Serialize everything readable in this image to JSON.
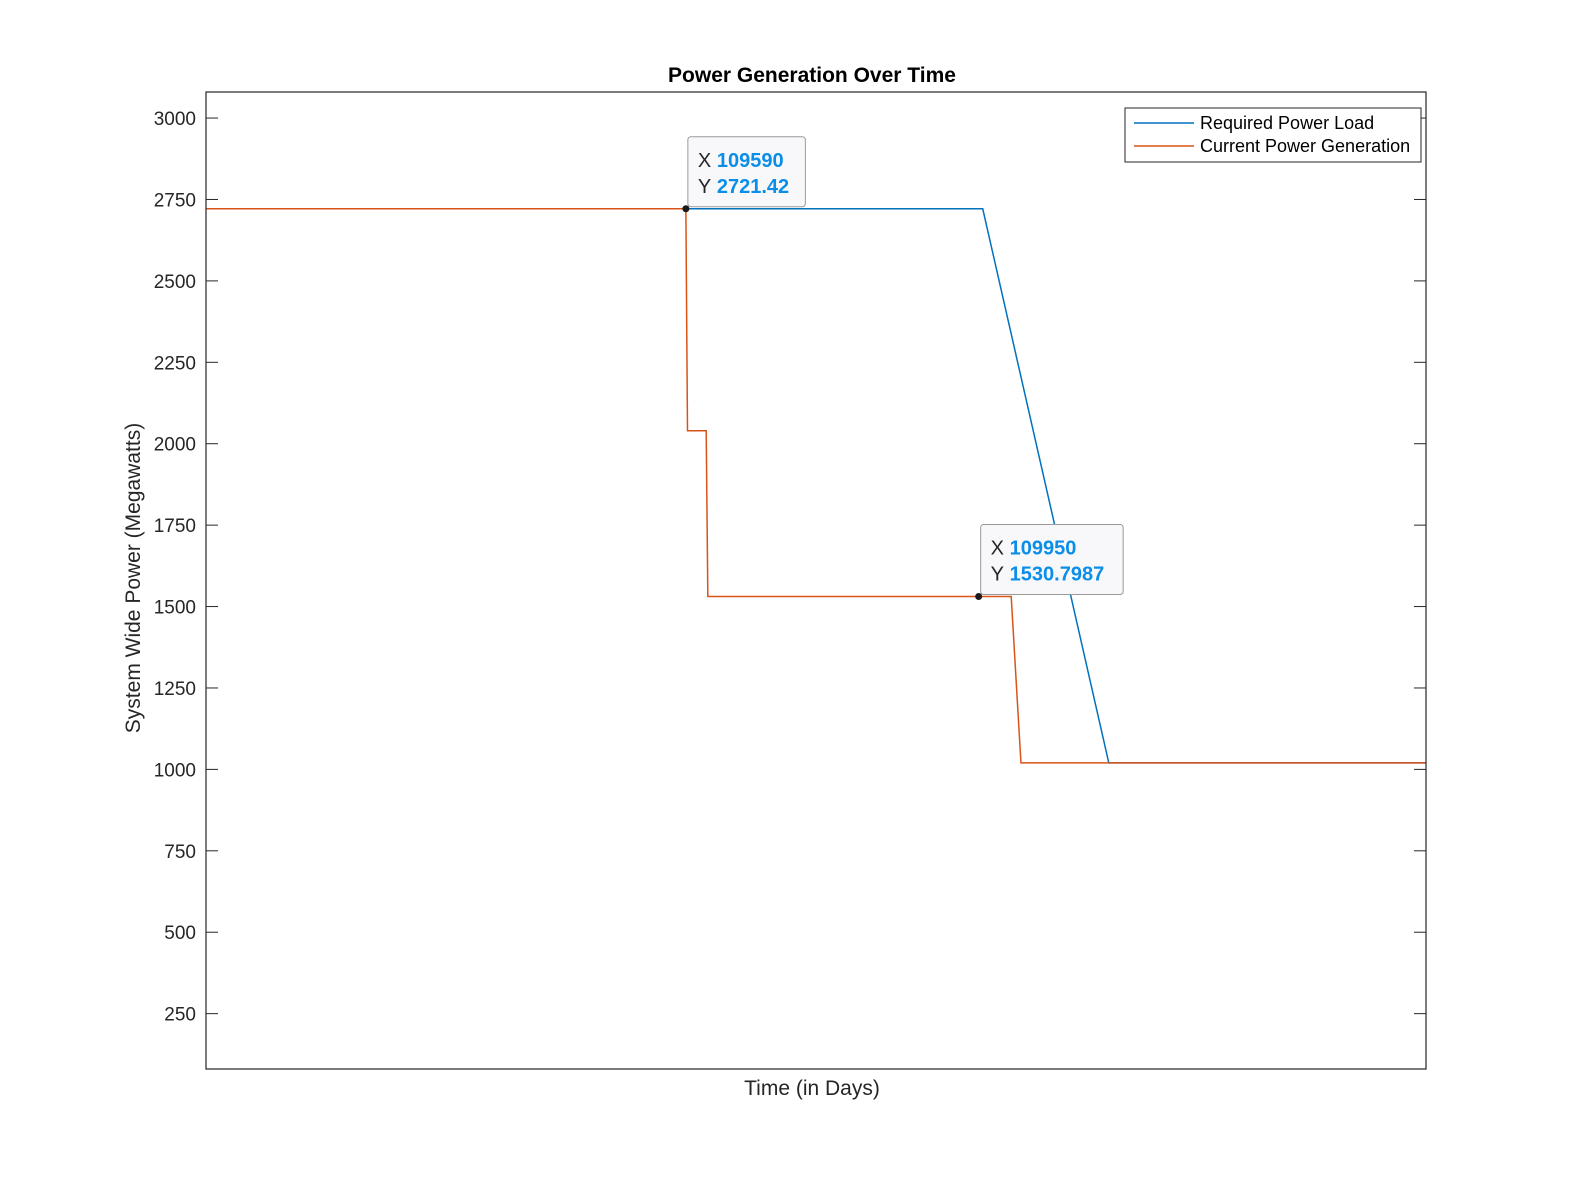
{
  "chart_data": {
    "type": "line",
    "title": "Power Generation Over Time",
    "xlabel": "Time (in Days)",
    "ylabel": "System Wide Power (Megawatts)",
    "xlim": [
      109000,
      110500
    ],
    "ylim": [
      80,
      3080
    ],
    "yticks": [
      250,
      500,
      750,
      1000,
      1250,
      1500,
      1750,
      2000,
      2250,
      2500,
      2750,
      3000
    ],
    "grid": false,
    "legend_position": "top-right",
    "series": [
      {
        "name": "Required Power Load",
        "color": "#0072BD",
        "x": [
          109000,
          109590,
          109955,
          110110,
          110500
        ],
        "y": [
          2721.42,
          2721.42,
          2721.42,
          1020,
          1020
        ]
      },
      {
        "name": "Current Power Generation",
        "color": "#D95319",
        "x": [
          109000,
          109590,
          109592,
          109615,
          109617,
          109945,
          109950,
          109990,
          110002,
          110500
        ],
        "y": [
          2721.42,
          2721.42,
          2040,
          2040,
          1530.7987,
          1530.7987,
          1530.7987,
          1530.7987,
          1020,
          1020
        ]
      }
    ],
    "datatips": [
      {
        "x_key": "X",
        "x_value": "109590",
        "y_key": "Y",
        "y_value": "2721.42",
        "x": 109590,
        "y": 2721.42
      },
      {
        "x_key": "X",
        "x_value": "109950",
        "y_key": "Y",
        "y_value": "1530.7987",
        "x": 109950,
        "y": 1530.7987
      }
    ]
  }
}
